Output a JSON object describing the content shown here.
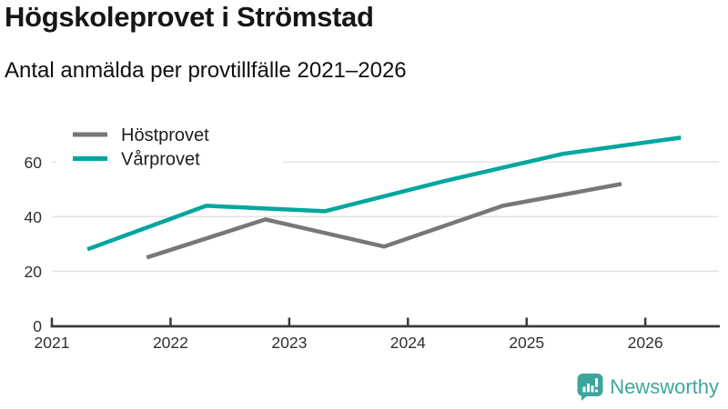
{
  "header": {
    "title": "Högskoleprovet i Strömstad",
    "subtitle": "Antal anmälda per provtillfälle 2021–2026"
  },
  "chart_data": {
    "type": "line",
    "x_tick_labels": [
      "2021",
      "2022",
      "2023",
      "2024",
      "2025",
      "2026"
    ],
    "y_ticks": [
      0,
      20,
      40,
      60
    ],
    "xlim": [
      2021,
      2026.62
    ],
    "ylim": [
      0,
      72.8
    ],
    "grid": "horizontal-only",
    "grid_color": "#e3e3e3",
    "axis_color": "#3a3a3a",
    "tick_label_color": "#303030",
    "legend_position": "top-left",
    "legend_text_color": "#1d1d1d",
    "series": [
      {
        "id": "hostprovet",
        "name": "Höstprovet",
        "color": "#77777b",
        "x": [
          2021.8,
          2022.8,
          2023.8,
          2024.8,
          2025.8
        ],
        "values": [
          25,
          39,
          29,
          44,
          52
        ]
      },
      {
        "id": "varprovet",
        "name": "Vårprovet",
        "color": "#00a69e",
        "x": [
          2021.3,
          2022.3,
          2023.3,
          2024.3,
          2025.3,
          2026.3
        ],
        "values": [
          28,
          44,
          42,
          53,
          63,
          69
        ]
      }
    ]
  },
  "footer": {
    "brand": "Newsworthy",
    "brand_color": "#3da69b",
    "logo_icon": "bar-chart-speech-bubble-icon"
  }
}
